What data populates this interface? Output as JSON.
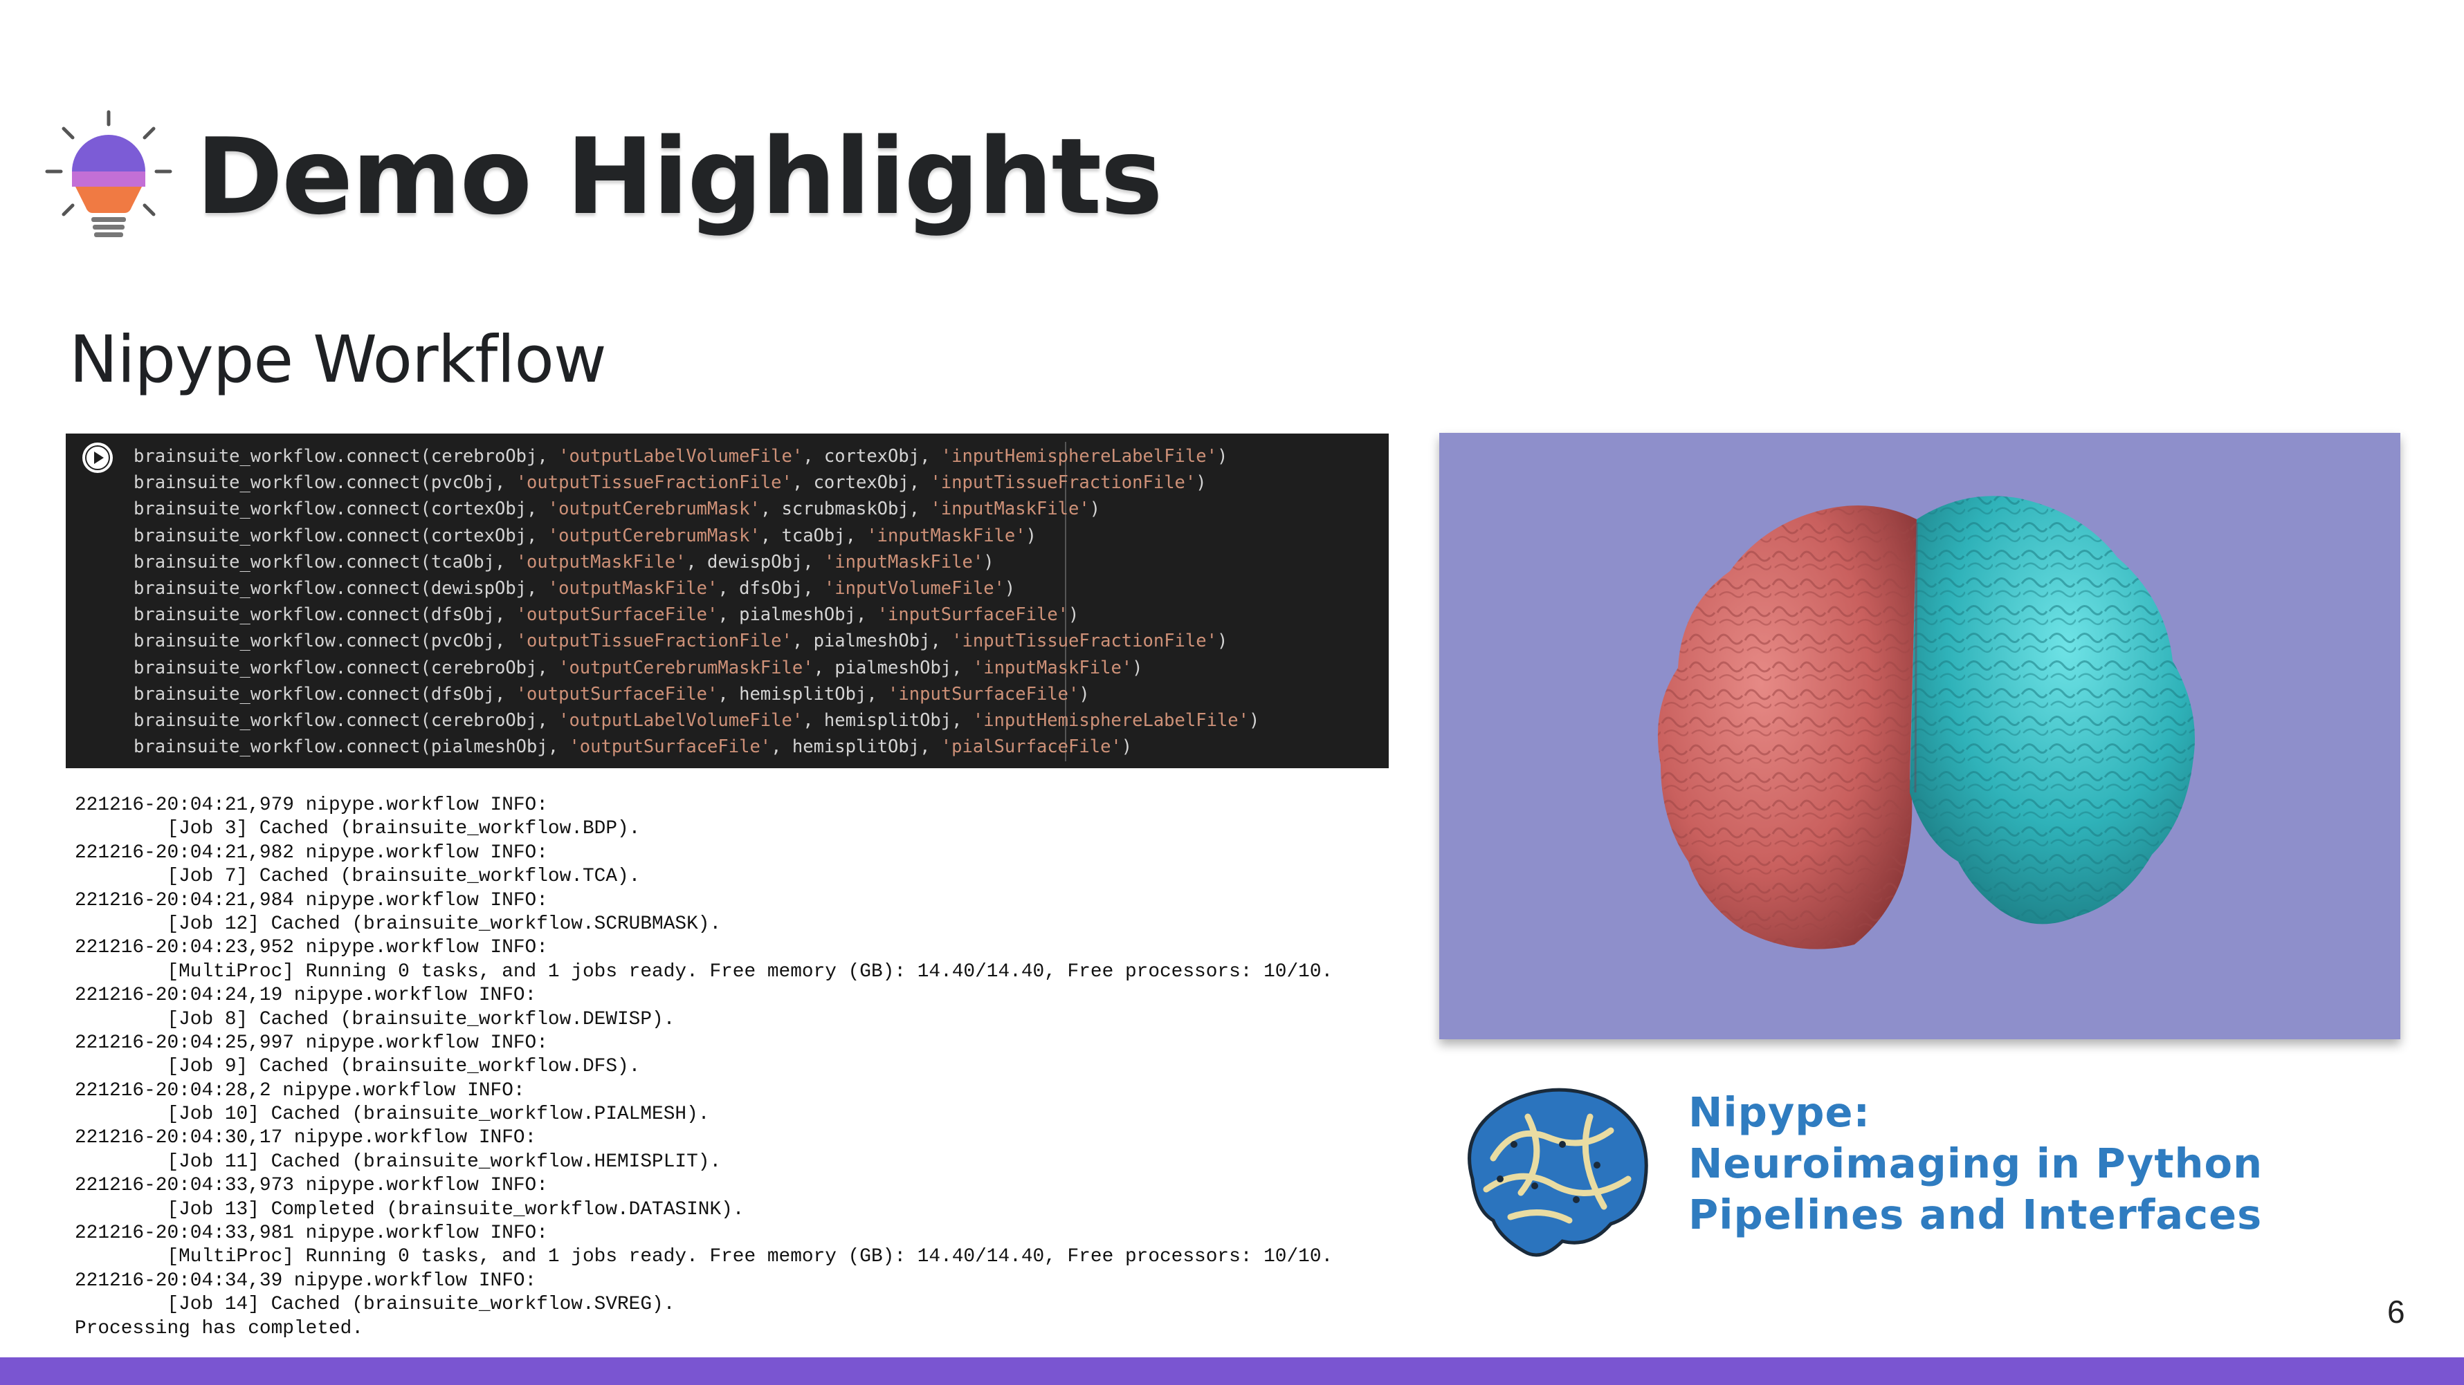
{
  "slide": {
    "title": "Demo Highlights",
    "subtitle": "Nipype Workflow",
    "page_number": "6",
    "accent_color": "#7a55d1",
    "title_icon": "lightbulb-icon"
  },
  "code_cell": {
    "run_icon": "play-icon",
    "lines": [
      [
        "brainsuite_workflow.connect(cerebroObj, ",
        "'outputLabelVolumeFile'",
        ", cortexObj, ",
        "'inputHemisphereLabelFile'",
        ")"
      ],
      [
        "brainsuite_workflow.connect(pvcObj, ",
        "'outputTissueFractionFile'",
        ", cortexObj, ",
        "'inputTissueFractionFile'",
        ")"
      ],
      [
        "brainsuite_workflow.connect(cortexObj, ",
        "'outputCerebrumMask'",
        ", scrubmaskObj, ",
        "'inputMaskFile'",
        ")"
      ],
      [
        "brainsuite_workflow.connect(cortexObj, ",
        "'outputCerebrumMask'",
        ", tcaObj, ",
        "'inputMaskFile'",
        ")"
      ],
      [
        "brainsuite_workflow.connect(tcaObj, ",
        "'outputMaskFile'",
        ", dewispObj, ",
        "'inputMaskFile'",
        ")"
      ],
      [
        "brainsuite_workflow.connect(dewispObj, ",
        "'outputMaskFile'",
        ", dfsObj, ",
        "'inputVolumeFile'",
        ")"
      ],
      [
        "brainsuite_workflow.connect(dfsObj, ",
        "'outputSurfaceFile'",
        ", pialmeshObj, ",
        "'inputSurfaceFile'",
        ")"
      ],
      [
        "brainsuite_workflow.connect(pvcObj, ",
        "'outputTissueFractionFile'",
        ", pialmeshObj, ",
        "'inputTissueFractionFile'",
        ")"
      ],
      [
        "brainsuite_workflow.connect(cerebroObj, ",
        "'outputCerebrumMaskFile'",
        ", pialmeshObj, ",
        "'inputMaskFile'",
        ")"
      ],
      [
        "brainsuite_workflow.connect(dfsObj, ",
        "'outputSurfaceFile'",
        ", hemisplitObj, ",
        "'inputSurfaceFile'",
        ")"
      ],
      [
        "brainsuite_workflow.connect(cerebroObj, ",
        "'outputLabelVolumeFile'",
        ", hemisplitObj, ",
        "'inputHemisphereLabelFile'",
        ")"
      ],
      [
        "brainsuite_workflow.connect(pialmeshObj, ",
        "'outputSurfaceFile'",
        ", hemisplitObj, ",
        "'pialSurfaceFile'",
        ")"
      ]
    ]
  },
  "log_output": [
    "221216-20:04:21,979 nipype.workflow INFO:",
    "        [Job 3] Cached (brainsuite_workflow.BDP).",
    "221216-20:04:21,982 nipype.workflow INFO:",
    "        [Job 7] Cached (brainsuite_workflow.TCA).",
    "221216-20:04:21,984 nipype.workflow INFO:",
    "        [Job 12] Cached (brainsuite_workflow.SCRUBMASK).",
    "221216-20:04:23,952 nipype.workflow INFO:",
    "        [MultiProc] Running 0 tasks, and 1 jobs ready. Free memory (GB): 14.40/14.40, Free processors: 10/10.",
    "221216-20:04:24,19 nipype.workflow INFO:",
    "        [Job 8] Cached (brainsuite_workflow.DEWISP).",
    "221216-20:04:25,997 nipype.workflow INFO:",
    "        [Job 9] Cached (brainsuite_workflow.DFS).",
    "221216-20:04:28,2 nipype.workflow INFO:",
    "        [Job 10] Cached (brainsuite_workflow.PIALMESH).",
    "221216-20:04:30,17 nipype.workflow INFO:",
    "        [Job 11] Cached (brainsuite_workflow.HEMISPLIT).",
    "221216-20:04:33,973 nipype.workflow INFO:",
    "        [Job 13] Completed (brainsuite_workflow.DATASINK).",
    "221216-20:04:33,981 nipype.workflow INFO:",
    "        [MultiProc] Running 0 tasks, and 1 jobs ready. Free memory (GB): 14.40/14.40, Free processors: 10/10.",
    "221216-20:04:34,39 nipype.workflow INFO:",
    "        [Job 14] Cached (brainsuite_workflow.SVREG).",
    "Processing has completed."
  ],
  "brain_render": {
    "background_color": "#8e8fcb",
    "left_hemisphere_color": "#d86d6d",
    "right_hemisphere_color": "#3fc3c9"
  },
  "nipype_logo": {
    "icon": "nipype-brain-python-logo",
    "lines": [
      "Nipype:",
      "Neuroimaging in Python",
      "Pipelines and Interfaces"
    ],
    "text_color": "#2f7cc0"
  }
}
